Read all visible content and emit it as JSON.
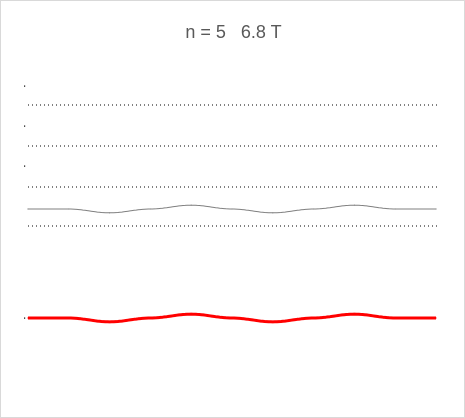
{
  "chart_data": {
    "type": "line",
    "title": "n = 5   6.8 T",
    "xlabel": "",
    "ylabel": "",
    "grid": false,
    "series": [
      {
        "color": "#7f7f7f",
        "style": "thin",
        "x": [
          0.0,
          0.1,
          0.2,
          0.3,
          0.4,
          0.5,
          0.6,
          0.7,
          0.8,
          0.9,
          1.0
        ],
        "y": [
          0,
          0,
          -0.55,
          0,
          0.55,
          0,
          -0.55,
          0,
          0.55,
          0,
          0
        ]
      },
      {
        "color": "#ff0000",
        "style": "thick",
        "x": [
          0.0,
          0.1,
          0.2,
          0.3,
          0.4,
          0.5,
          0.6,
          0.7,
          0.8,
          0.9,
          1.0
        ],
        "y": [
          0,
          0,
          -0.55,
          0,
          0.55,
          0,
          -0.55,
          0,
          0.55,
          0,
          0
        ]
      }
    ]
  }
}
